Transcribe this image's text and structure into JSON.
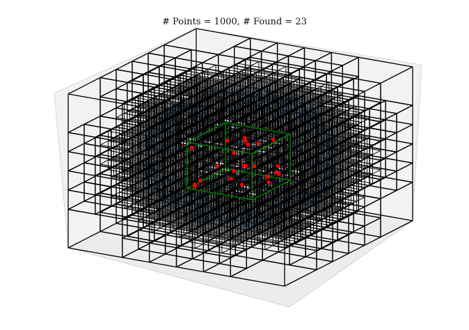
{
  "chart_data": {
    "type": "scatter",
    "title": "# Points = 1000, # Found = 23",
    "xlabel": "",
    "ylabel": "",
    "zlabel": "",
    "projection": "3d",
    "axes_visible": false,
    "pane_color": "#f2f2f2",
    "grid": false,
    "series": [
      {
        "name": "",
        "role": "all points",
        "color": "#5b9bd5"
      },
      {
        "name": "",
        "role": "found points",
        "color": "#ff0000"
      }
    ],
    "overlays": [
      {
        "role": "octree cell boundaries",
        "color": "#000000"
      },
      {
        "role": "query region box",
        "color": "#008000"
      }
    ]
  }
}
